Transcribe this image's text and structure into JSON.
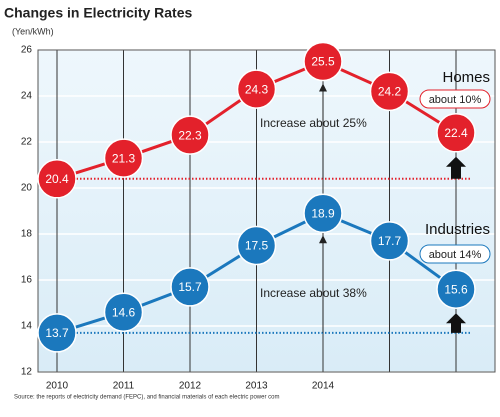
{
  "chart_data": {
    "type": "line",
    "title": "Changes in Electricity Rates",
    "y_label": "(Yen/kWh)",
    "categories": [
      "2010",
      "2011",
      "2012",
      "2013",
      "2014",
      null,
      null
    ],
    "series": [
      {
        "name": "Homes",
        "color": "#e3212b",
        "values": [
          20.4,
          21.3,
          22.3,
          24.3,
          25.5,
          24.2,
          22.4
        ]
      },
      {
        "name": "Industries",
        "color": "#1b78bd",
        "values": [
          13.7,
          14.6,
          15.7,
          17.5,
          18.9,
          17.7,
          15.6
        ]
      }
    ],
    "ylim": [
      12,
      26
    ],
    "yticks": [
      12,
      14,
      16,
      18,
      20,
      22,
      24,
      26
    ],
    "grid": true,
    "annotations": [
      "about 10%",
      "Increase about 25%",
      "about 14%",
      "Increase about 38%"
    ],
    "source": "Source: the reports of electricity demand (FEPC), and financial materials of each electric power com"
  }
}
